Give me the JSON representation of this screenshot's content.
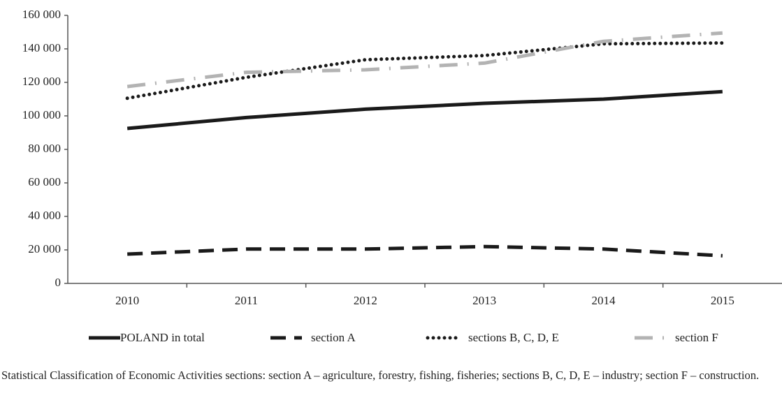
{
  "chart_data": {
    "type": "line",
    "categories": [
      "2010",
      "2011",
      "2012",
      "2013",
      "2014",
      "2015"
    ],
    "series": [
      {
        "name": "POLAND in total",
        "color": "#1a1a1a",
        "style": "solid",
        "values": [
          92500,
          99000,
          104000,
          107500,
          110000,
          114500
        ]
      },
      {
        "name": "section A",
        "color": "#1a1a1a",
        "style": "dashed",
        "values": [
          17500,
          20500,
          20500,
          22000,
          20500,
          16500
        ]
      },
      {
        "name": "sections B, C, D, E",
        "color": "#1a1a1a",
        "style": "dotted",
        "values": [
          110500,
          123000,
          133500,
          136000,
          143000,
          143500
        ]
      },
      {
        "name": "section F",
        "color": "#b3b3b3",
        "style": "dashdot",
        "values": [
          117500,
          126000,
          127500,
          131500,
          144500,
          149500
        ]
      }
    ],
    "ylim": [
      0,
      160000
    ],
    "yticks": [
      0,
      {
        "value": 20000,
        "label": "20 000"
      },
      {
        "value": 40000,
        "label": "40 000"
      },
      {
        "value": 60000,
        "label": "60 000"
      },
      {
        "value": 80000,
        "label": "80 000"
      },
      {
        "value": 100000,
        "label": "100 000"
      },
      {
        "value": 120000,
        "label": "120 000"
      },
      {
        "value": 140000,
        "label": "140 000"
      },
      {
        "value": 160000,
        "label": "160 000"
      }
    ],
    "grid": false,
    "legend": "bottom",
    "note": "Statistical Classification of Economic Activities sections: section A – agriculture, forestry, fishing, fisheries; sections B, C, D, E – industry; section F – construction."
  }
}
